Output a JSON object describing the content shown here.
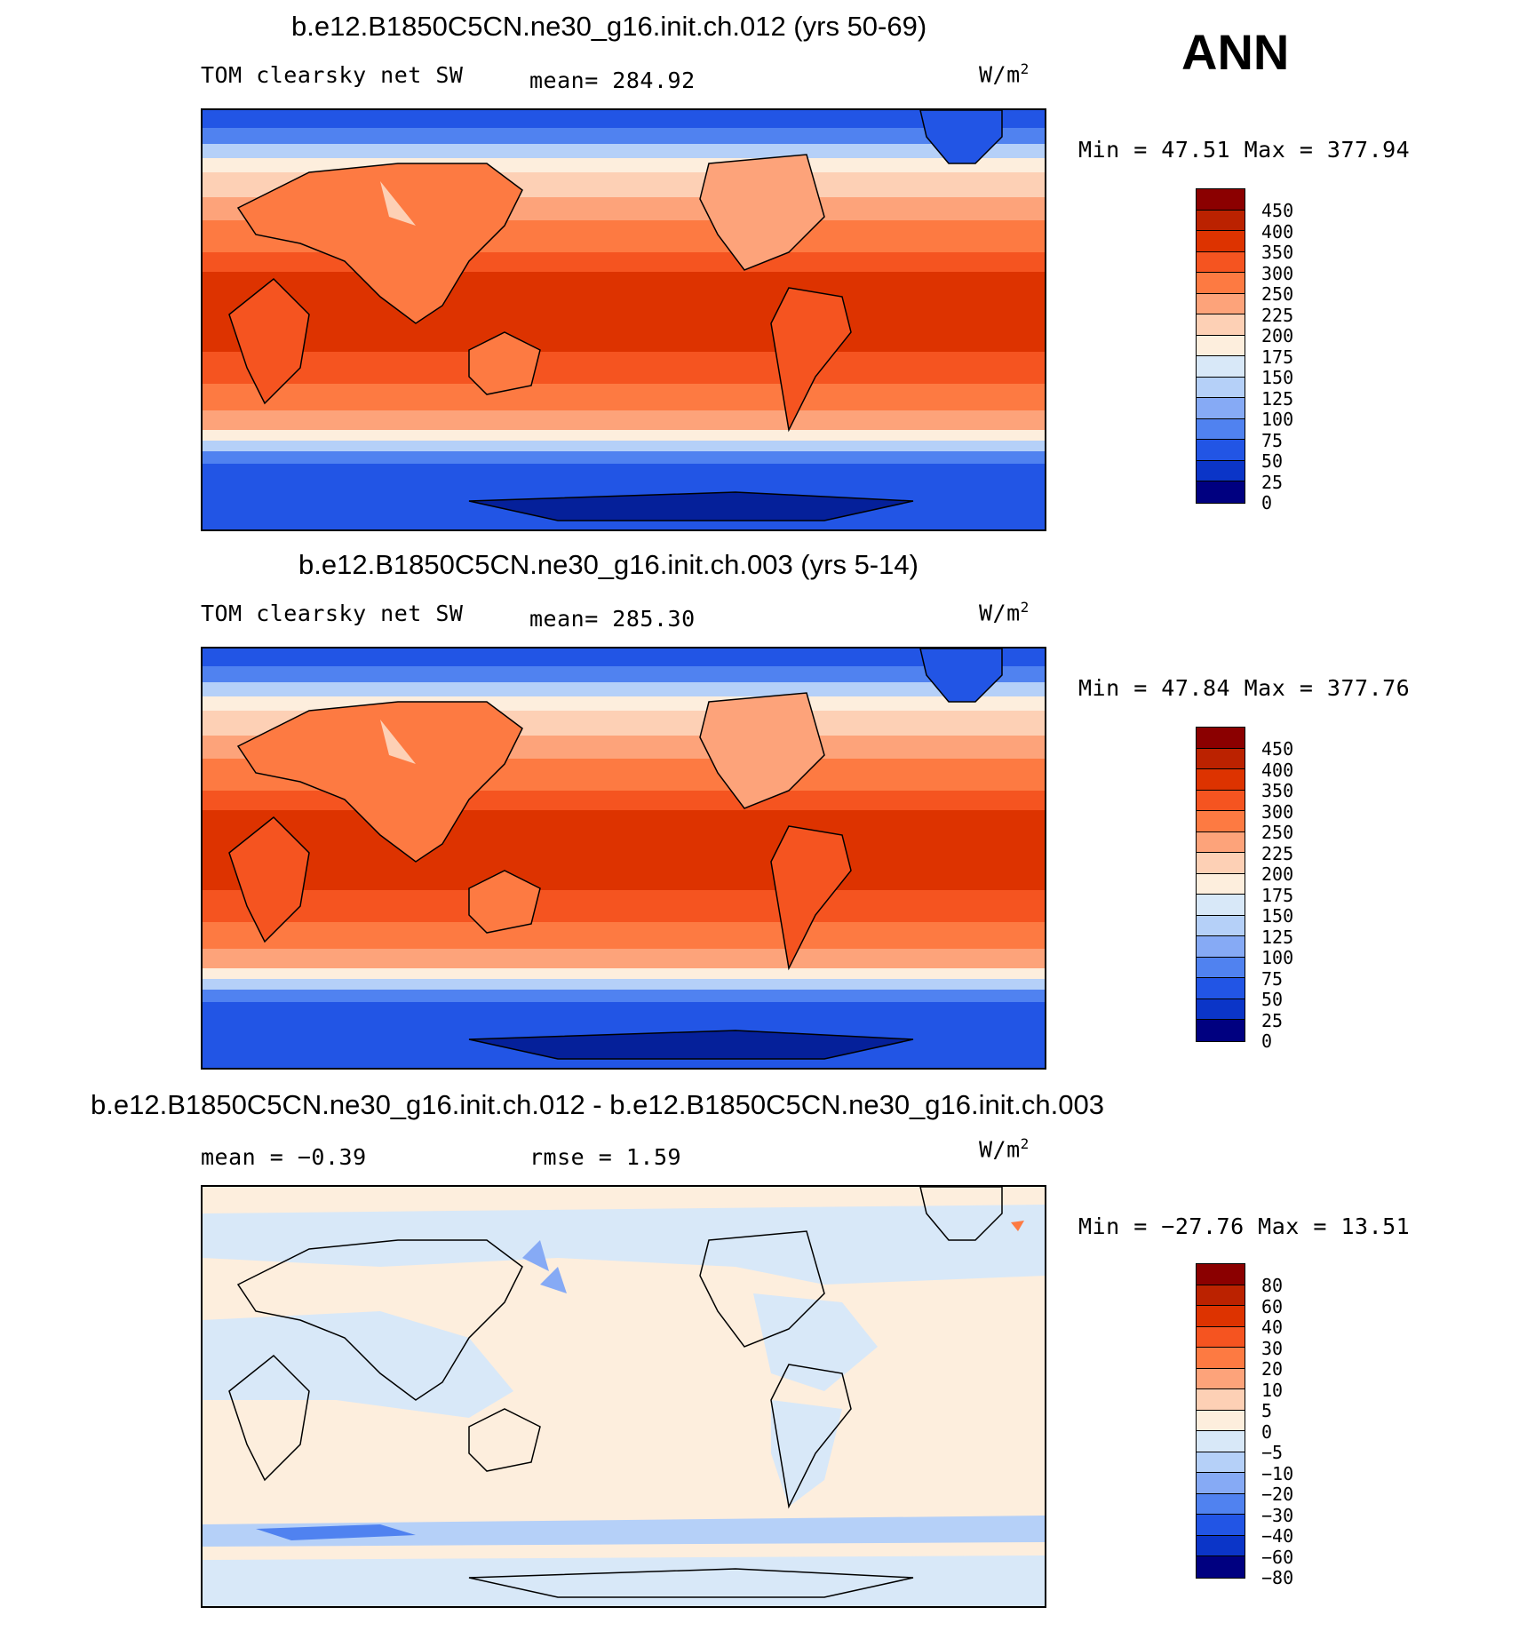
{
  "overlay_label": "ANN",
  "units_text": "W/m",
  "units_sup": "2",
  "panels": [
    {
      "title": "b.e12.B1850C5CN.ne30_g16.init.ch.012 (yrs 50-69)",
      "left_label": "TOM clearsky net SW",
      "stat1": "mean= 284.92",
      "stat2": "",
      "minmax": "Min =   47.51 Max = 377.94"
    },
    {
      "title": "b.e12.B1850C5CN.ne30_g16.init.ch.003 (yrs 5-14)",
      "left_label": "TOM clearsky net SW",
      "stat1": "mean= 285.30",
      "stat2": "",
      "minmax": "Min =   47.84 Max = 377.76"
    },
    {
      "title": "b.e12.B1850C5CN.ne30_g16.init.ch.012 - b.e12.B1850C5CN.ne30_g16.init.ch.003",
      "left_label": "mean =   −0.39",
      "stat1": "rmse =    1.59",
      "stat2": "",
      "minmax": "Min = −27.76 Max =   13.51"
    }
  ],
  "colorbars": {
    "field": {
      "labels": [
        "450",
        "400",
        "350",
        "300",
        "250",
        "225",
        "200",
        "175",
        "150",
        "125",
        "100",
        "75",
        "50",
        "25",
        "0"
      ],
      "colors": [
        "#8b0000",
        "#bb2200",
        "#dd3300",
        "#f55420",
        "#fd7a42",
        "#fda37a",
        "#fdd0b5",
        "#fdeedd",
        "#d8e8f8",
        "#b5d0f8",
        "#86aaf5",
        "#5082f0",
        "#2255e5",
        "#0b35c8",
        "#05209a",
        "#000080"
      ]
    },
    "diff": {
      "labels": [
        "80",
        "60",
        "40",
        "30",
        "20",
        "10",
        "5",
        "0",
        "−5",
        "−10",
        "−20",
        "−30",
        "−40",
        "−60",
        "−80"
      ],
      "colors": [
        "#8b0000",
        "#bb2200",
        "#dd3300",
        "#f55420",
        "#fd7a42",
        "#fda37a",
        "#fdd0b5",
        "#fdeedd",
        "#d8e8f8",
        "#b5d0f8",
        "#86aaf5",
        "#5082f0",
        "#2255e5",
        "#0b35c8",
        "#05209a",
        "#000080"
      ]
    }
  }
}
